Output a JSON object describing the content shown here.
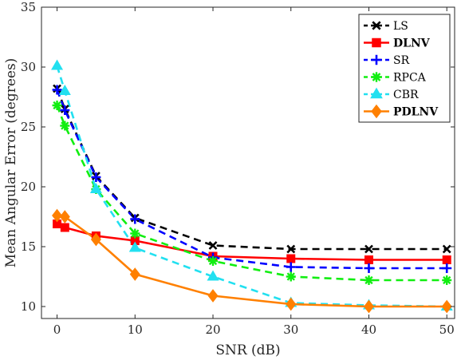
{
  "chart_data": {
    "type": "line",
    "xlabel": "SNR (dB)",
    "ylabel": "Mean Angular Error (degrees)",
    "xlim": [
      -2,
      51
    ],
    "ylim": [
      9,
      35
    ],
    "xticks": [
      "0",
      "10",
      "20",
      "30",
      "40",
      "50"
    ],
    "yticks": [
      "10",
      "15",
      "20",
      "25",
      "30",
      "35"
    ],
    "grid": false,
    "legend_position": "top-right",
    "series": [
      {
        "name": "LS",
        "bold": false,
        "color": "#000000",
        "dash": "dashed",
        "marker": "x",
        "x": [
          0,
          1,
          5,
          10,
          20,
          30,
          40,
          50
        ],
        "y": [
          28.2,
          26.5,
          20.9,
          17.4,
          15.1,
          14.8,
          14.8,
          14.8
        ]
      },
      {
        "name": "DLNV",
        "bold": true,
        "color": "#ff0000",
        "dash": "solid",
        "marker": "square",
        "x": [
          0,
          1,
          5,
          10,
          20,
          30,
          40,
          50
        ],
        "y": [
          16.9,
          16.6,
          15.9,
          15.5,
          14.2,
          14.0,
          13.9,
          13.9
        ]
      },
      {
        "name": "SR",
        "bold": false,
        "color": "#0000ff",
        "dash": "dashed",
        "marker": "plus",
        "x": [
          0,
          1,
          5,
          10,
          20,
          30,
          40,
          50
        ],
        "y": [
          28.1,
          26.4,
          20.8,
          17.3,
          14.1,
          13.3,
          13.2,
          13.2
        ]
      },
      {
        "name": "RPCA",
        "bold": false,
        "color": "#11ee11",
        "dash": "dashed",
        "marker": "asterisk",
        "x": [
          0,
          1,
          5,
          10,
          20,
          30,
          40,
          50
        ],
        "y": [
          26.8,
          25.1,
          19.8,
          16.1,
          13.8,
          12.5,
          12.2,
          12.2
        ]
      },
      {
        "name": "CBR",
        "bold": false,
        "color": "#22e0f0",
        "dash": "dashed",
        "marker": "triangle",
        "x": [
          0,
          1,
          5,
          10,
          20,
          30,
          40,
          50
        ],
        "y": [
          30.1,
          28.0,
          19.8,
          14.9,
          12.5,
          10.3,
          10.1,
          10.0
        ]
      },
      {
        "name": "PDLNV",
        "bold": true,
        "color": "#ff8000",
        "dash": "solid",
        "marker": "diamond",
        "x": [
          0,
          1,
          5,
          10,
          20,
          30,
          40,
          50
        ],
        "y": [
          17.6,
          17.5,
          15.6,
          12.7,
          10.9,
          10.2,
          10.0,
          10.0
        ]
      }
    ]
  }
}
